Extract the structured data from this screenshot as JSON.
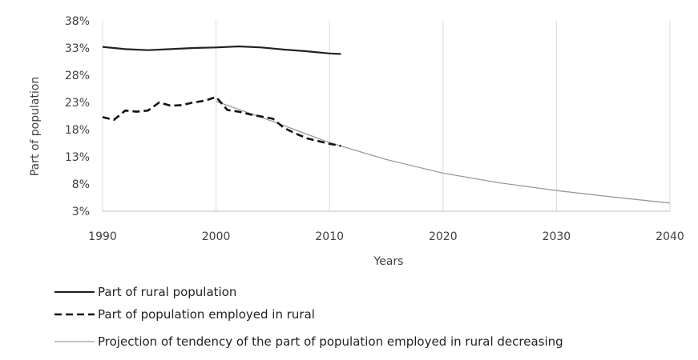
{
  "chart_data": {
    "type": "line",
    "title": "",
    "xlabel": "Years",
    "ylabel": "Part of population",
    "xlim": [
      1990,
      2040
    ],
    "ylim": [
      3,
      38
    ],
    "x_ticks": [
      1990,
      2000,
      2010,
      2020,
      2030,
      2040
    ],
    "y_ticks": [
      3,
      8,
      13,
      18,
      23,
      28,
      33,
      38
    ],
    "y_tick_labels": [
      "3%",
      "8%",
      "13%",
      "18%",
      "23%",
      "28%",
      "33%",
      "38%"
    ],
    "grid": "vertical",
    "legend_position": "bottom",
    "series": [
      {
        "name": "Part of rural population",
        "style": "solid",
        "color": "#222222",
        "points": [
          [
            1990,
            33.2
          ],
          [
            1992,
            32.8
          ],
          [
            1994,
            32.6
          ],
          [
            1996,
            32.8
          ],
          [
            1998,
            33.0
          ],
          [
            2000,
            33.1
          ],
          [
            2002,
            33.3
          ],
          [
            2004,
            33.1
          ],
          [
            2006,
            32.7
          ],
          [
            2008,
            32.4
          ],
          [
            2010,
            32.0
          ],
          [
            2011,
            31.9
          ]
        ]
      },
      {
        "name": "Part of population employed in rural",
        "style": "dashed",
        "color": "#111111",
        "points": [
          [
            1990,
            20.3
          ],
          [
            1991,
            19.8
          ],
          [
            1992,
            21.5
          ],
          [
            1993,
            21.3
          ],
          [
            1994,
            21.5
          ],
          [
            1995,
            23.0
          ],
          [
            1996,
            22.4
          ],
          [
            1997,
            22.5
          ],
          [
            1998,
            23.0
          ],
          [
            1999,
            23.3
          ],
          [
            2000,
            24.0
          ],
          [
            2001,
            21.6
          ],
          [
            2002,
            21.3
          ],
          [
            2003,
            20.8
          ],
          [
            2004,
            20.4
          ],
          [
            2005,
            20.0
          ],
          [
            2006,
            18.3
          ],
          [
            2007,
            17.3
          ],
          [
            2008,
            16.4
          ],
          [
            2009,
            15.9
          ],
          [
            2010,
            15.4
          ],
          [
            2011,
            15.0
          ]
        ]
      },
      {
        "name": "Projection of tendency of the part of population employed in rural decreasing",
        "style": "thin",
        "color": "#9a9a9a",
        "points": [
          [
            2000,
            23.2
          ],
          [
            2005,
            19.5
          ],
          [
            2010,
            15.6
          ],
          [
            2015,
            12.5
          ],
          [
            2020,
            10.0
          ],
          [
            2025,
            8.2
          ],
          [
            2030,
            6.8
          ],
          [
            2035,
            5.6
          ],
          [
            2040,
            4.5
          ]
        ]
      }
    ]
  }
}
